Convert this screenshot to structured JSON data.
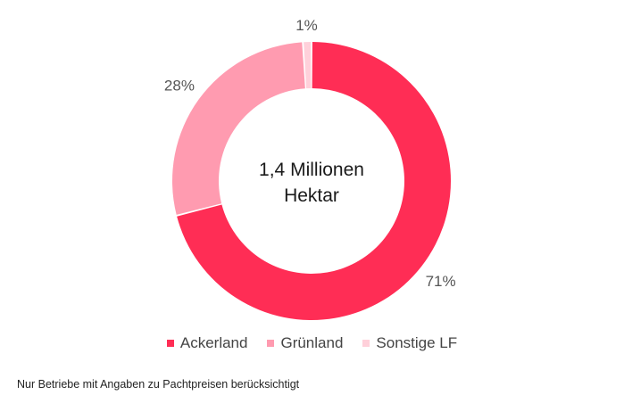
{
  "chart_data": {
    "type": "pie",
    "donut": true,
    "center_text": [
      "1,4 Millionen",
      "Hektar"
    ],
    "categories": [
      "Ackerland",
      "Grünland",
      "Sonstige LF"
    ],
    "values": [
      71,
      28,
      1
    ],
    "value_labels": [
      "71%",
      "28%",
      "1%"
    ],
    "colors": [
      "#ff2d55",
      "#ff9bb0",
      "#ffd0da"
    ],
    "legend": [
      {
        "label": "Ackerland",
        "color": "#ff2d55"
      },
      {
        "label": "Grünland",
        "color": "#ff9bb0"
      },
      {
        "label": "Sonstige LF",
        "color": "#ffd0da"
      }
    ],
    "legend_position": "bottom"
  },
  "footnote": "Nur Betriebe mit Angaben zu Pachtpreisen berücksichtigt"
}
